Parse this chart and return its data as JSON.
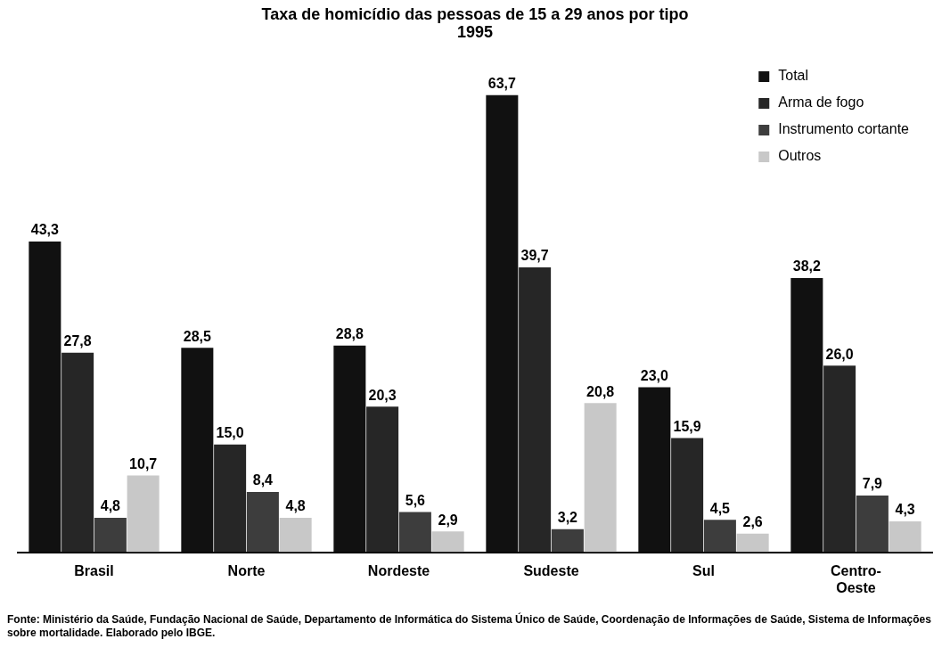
{
  "chart_data": {
    "type": "bar",
    "title": "Taxa de homicídio das pessoas de 15 a 29 anos por tipo",
    "subtitle": "1995",
    "categories": [
      "Brasil",
      "Norte",
      "Nordeste",
      "Sudeste",
      "Sul",
      "Centro-Oeste"
    ],
    "series": [
      {
        "name": "Total",
        "color": "#111111",
        "values": [
          43.3,
          28.5,
          28.8,
          63.7,
          23.0,
          38.2
        ],
        "value_labels": [
          "43,3",
          "28,5",
          "28,8",
          "63,7",
          "23,0",
          "38,2"
        ]
      },
      {
        "name": "Arma de fogo",
        "color": "#262626",
        "values": [
          27.8,
          15.0,
          20.3,
          39.7,
          15.9,
          26.0
        ],
        "value_labels": [
          "27,8",
          "15,0",
          "20,3",
          "39,7",
          "15,9",
          "26,0"
        ]
      },
      {
        "name": "Instrumento cortante",
        "color": "#3d3d3d",
        "values": [
          4.8,
          8.4,
          5.6,
          3.2,
          4.5,
          7.9
        ],
        "value_labels": [
          "4,8",
          "8,4",
          "5,6",
          "3,2",
          "4,5",
          "7,9"
        ]
      },
      {
        "name": "Outros",
        "color": "#c8c8c8",
        "values": [
          10.7,
          4.8,
          2.9,
          20.8,
          2.6,
          4.3
        ],
        "value_labels": [
          "10,7",
          "4,8",
          "2,9",
          "20,8",
          "2,6",
          "4,3"
        ]
      }
    ],
    "legend": "top right",
    "annotations": [
      "Fonte: Ministério da Saúde, Fundação Nacional de Saúde, Departamento de Informática do Sistema Único de Saúde, Coordenação de Informações de Saúde, Sistema de Informações sobre mortalidade. Elaborado pelo IBGE."
    ]
  }
}
